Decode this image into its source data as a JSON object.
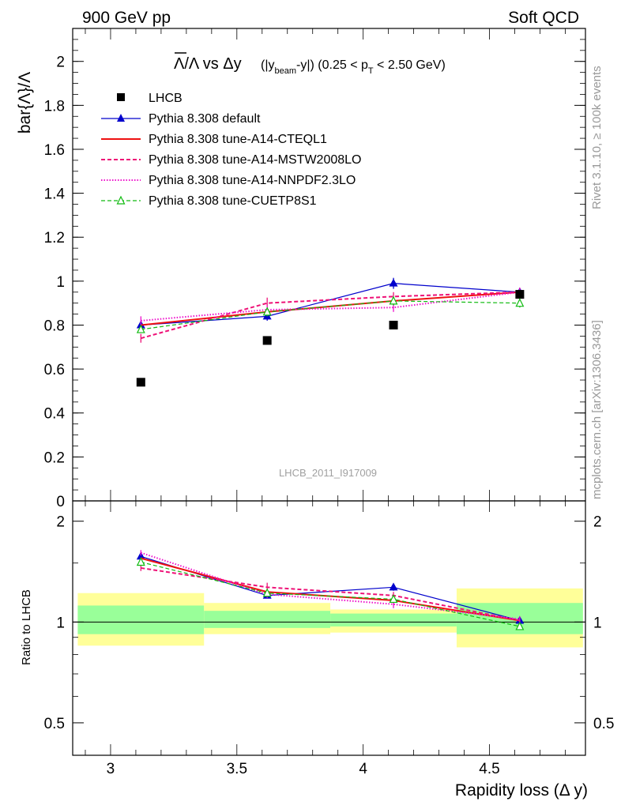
{
  "header": {
    "left": "900 GeV pp",
    "right": "Soft QCD"
  },
  "side_labels": {
    "rivet": "Rivet 3.1.10, ≥ 100k events",
    "mcplots": "mcplots.cern.ch [arXiv:1306.3436]"
  },
  "watermark": "LHCB_2011_I917009",
  "colors": {
    "data": "#000000",
    "pythia_default": "#0000cc",
    "a14_cteql1": "#ee1111",
    "a14_mstw": "#ee1177",
    "a14_nnpdf": "#ee11cc",
    "cuetp8s1": "#11bb11",
    "band_inner": "#99ff99",
    "band_outer": "#ffff99"
  },
  "chart_data": [
    {
      "type": "line",
      "panel": "main",
      "title": "Λ̅/Λ vs Δy (|y_beam-y|) (0.25 < p_T < 2.50 GeV)",
      "title_parts": {
        "main": "Λ/Λ vs Δy",
        "detail_pre": "(|y",
        "beam_sub": "beam",
        "detail_mid": "-y|) (0.25 < p",
        "pt_sub": "T",
        "detail_post": " < 2.50 GeV)"
      },
      "ylabel": "bar{Λ}/Λ",
      "xlim": [
        2.85,
        4.88
      ],
      "ylim": [
        0,
        2.15
      ],
      "yticks": [
        "0",
        "0.2",
        "0.4",
        "0.6",
        "0.8",
        "1",
        "1.2",
        "1.4",
        "1.6",
        "1.8",
        "2"
      ],
      "legend_position": "top-left",
      "x": [
        3.12,
        3.62,
        4.12,
        4.62
      ],
      "series": [
        {
          "name": "LHCB",
          "values": [
            0.54,
            0.73,
            0.8,
            0.94
          ],
          "errors": [
            0.01,
            0.01,
            0.01,
            0.01
          ],
          "style": "data"
        },
        {
          "name": "Pythia 8.308 default",
          "values": [
            0.8,
            0.84,
            0.99,
            0.95
          ],
          "errors": [
            0.015,
            0.02,
            0.025,
            0.02
          ],
          "style": "default"
        },
        {
          "name": "Pythia 8.308 tune-A14-CTEQL1",
          "values": [
            0.8,
            0.86,
            0.91,
            0.95
          ],
          "errors": [
            0,
            0,
            0,
            0
          ],
          "style": "cteql1"
        },
        {
          "name": "Pythia 8.308 tune-A14-MSTW2008LO",
          "values": [
            0.74,
            0.9,
            0.93,
            0.95
          ],
          "errors": [
            0.02,
            0.025,
            0.02,
            0.02
          ],
          "style": "mstw"
        },
        {
          "name": "Pythia 8.308 tune-A14-NNPDF2.3LO",
          "values": [
            0.82,
            0.87,
            0.88,
            0.95
          ],
          "errors": [
            0.02,
            0.02,
            0.02,
            0.02
          ],
          "style": "nnpdf"
        },
        {
          "name": "Pythia 8.308 tune-CUETP8S1",
          "values": [
            0.78,
            0.86,
            0.91,
            0.9
          ],
          "errors": [
            0.015,
            0.02,
            0.02,
            0.02
          ],
          "style": "cuetp8s1"
        }
      ]
    },
    {
      "type": "line",
      "panel": "ratio",
      "ylabel": "Ratio to LHCB",
      "xlabel": "Rapidity loss (Δ y)",
      "xlim": [
        2.85,
        4.88
      ],
      "ylim": [
        0.4,
        2.3
      ],
      "log_y": true,
      "xticks": [
        "3",
        "3.5",
        "4",
        "4.5"
      ],
      "yticks": [
        "0.5",
        "1",
        "2"
      ],
      "bands": [
        {
          "x": [
            2.87,
            3.37
          ],
          "inner": [
            0.92,
            1.12
          ],
          "outer": [
            0.85,
            1.22
          ]
        },
        {
          "x": [
            3.37,
            3.87
          ],
          "inner": [
            0.96,
            1.08
          ],
          "outer": [
            0.92,
            1.14
          ]
        },
        {
          "x": [
            3.87,
            4.37
          ],
          "inner": [
            0.97,
            1.06
          ],
          "outer": [
            0.93,
            1.09
          ]
        },
        {
          "x": [
            4.37,
            4.87
          ],
          "inner": [
            0.92,
            1.14
          ],
          "outer": [
            0.84,
            1.26
          ]
        }
      ],
      "x": [
        3.12,
        3.62,
        4.12,
        4.62
      ],
      "series": [
        {
          "name": "Pythia 8.308 default",
          "values": [
            1.57,
            1.2,
            1.27,
            1.01
          ],
          "errors": [
            0.03,
            0.02,
            0.03,
            0.02
          ],
          "style": "default"
        },
        {
          "name": "Pythia 8.308 tune-A14-CTEQL1",
          "values": [
            1.55,
            1.23,
            1.16,
            1.01
          ],
          "errors": [
            0,
            0,
            0,
            0
          ],
          "style": "cteql1"
        },
        {
          "name": "Pythia 8.308 tune-A14-MSTW2008LO",
          "values": [
            1.45,
            1.27,
            1.2,
            1.01
          ],
          "errors": [
            0.03,
            0.04,
            0.03,
            0.02
          ],
          "style": "mstw"
        },
        {
          "name": "Pythia 8.308 tune-A14-NNPDF2.3LO",
          "values": [
            1.61,
            1.21,
            1.13,
            1.02
          ],
          "errors": [
            0.03,
            0.03,
            0.03,
            0.02
          ],
          "style": "nnpdf"
        },
        {
          "name": "Pythia 8.308 tune-CUETP8S1",
          "values": [
            1.51,
            1.22,
            1.17,
            0.97
          ],
          "errors": [
            0.03,
            0.03,
            0.03,
            0.02
          ],
          "style": "cuetp8s1"
        }
      ]
    }
  ]
}
